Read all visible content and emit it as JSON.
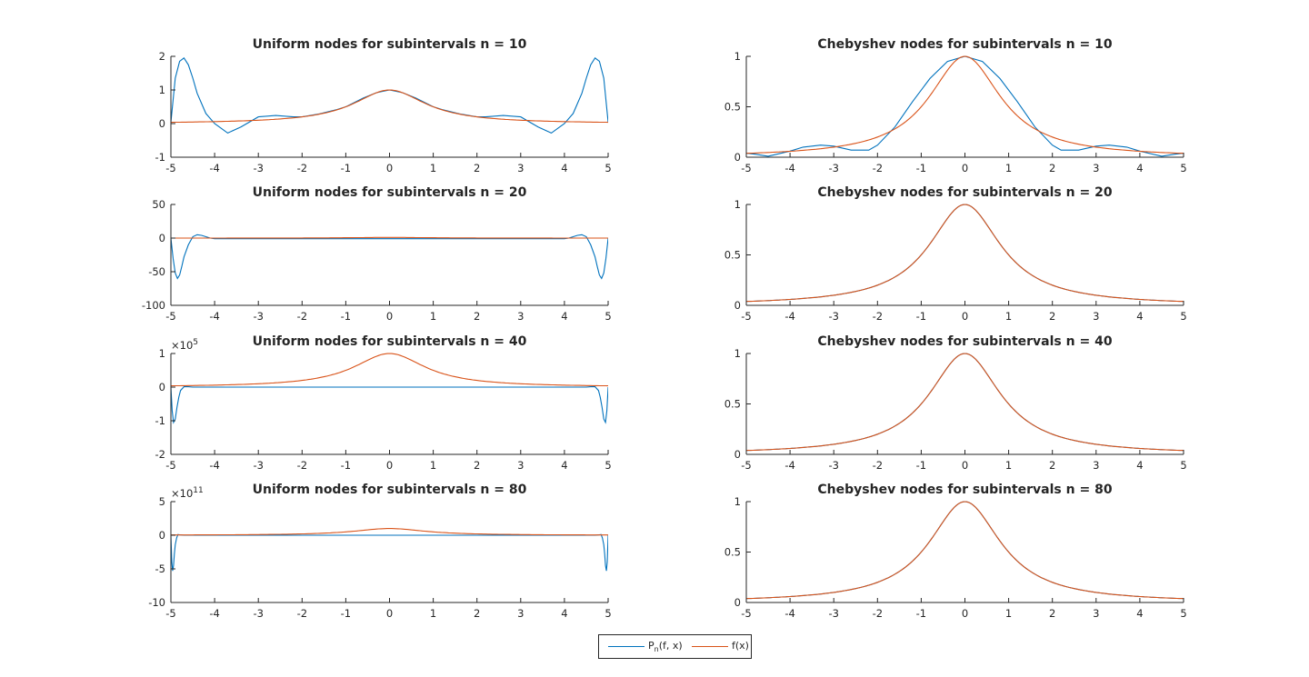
{
  "chart_data": [
    {
      "type": "line",
      "title": "Uniform nodes for subintervals n = 10",
      "xlim": [
        -5,
        5
      ],
      "ylim": [
        -1,
        2
      ],
      "xticks": [
        "-5",
        "-4",
        "-3",
        "-2",
        "-1",
        "0",
        "1",
        "2",
        "3",
        "4",
        "5"
      ],
      "yticks": [
        "-1",
        "0",
        "1",
        "2"
      ],
      "exponent": "",
      "grid": false,
      "series": [
        {
          "name": "p",
          "values_from": "interp",
          "x": [
            -5,
            -4.9,
            -4.8,
            -4.7,
            -4.6,
            -4.5,
            -4.4,
            -4.2,
            -4,
            -3.7,
            -3.4,
            -3,
            -2.6,
            -2.2,
            -2,
            -1.6,
            -1.2,
            -1,
            -0.6,
            -0.3,
            0,
            0.3,
            0.6,
            1,
            1.2,
            1.6,
            2,
            2.2,
            2.6,
            3,
            3.4,
            3.7,
            4,
            4.2,
            4.4,
            4.5,
            4.6,
            4.7,
            4.8,
            4.9,
            5
          ],
          "y": [
            0.04,
            1.35,
            1.85,
            1.95,
            1.75,
            1.35,
            0.9,
            0.3,
            0,
            -0.28,
            -0.1,
            0.2,
            0.24,
            0.2,
            0.2,
            0.29,
            0.42,
            0.5,
            0.76,
            0.92,
            1,
            0.92,
            0.76,
            0.5,
            0.42,
            0.29,
            0.2,
            0.2,
            0.24,
            0.2,
            -0.1,
            -0.28,
            0,
            0.3,
            0.9,
            1.35,
            1.75,
            1.95,
            1.85,
            1.35,
            0.04
          ]
        },
        {
          "name": "f",
          "values_from": "runge"
        }
      ]
    },
    {
      "type": "line",
      "title": "Chebyshev nodes for subintervals n = 10",
      "xlim": [
        -5,
        5
      ],
      "ylim": [
        0,
        1
      ],
      "xticks": [
        "-5",
        "-4",
        "-3",
        "-2",
        "-1",
        "0",
        "1",
        "2",
        "3",
        "4",
        "5"
      ],
      "yticks": [
        "0",
        "0.5",
        "1"
      ],
      "exponent": "",
      "grid": false,
      "series": [
        {
          "name": "p",
          "x": [
            -5,
            -4.8,
            -4.5,
            -4,
            -3.7,
            -3.3,
            -3,
            -2.6,
            -2.2,
            -2,
            -1.6,
            -1.2,
            -0.8,
            -0.4,
            0,
            0.4,
            0.8,
            1.2,
            1.6,
            2,
            2.2,
            2.6,
            3,
            3.3,
            3.7,
            4,
            4.5,
            4.8,
            5
          ],
          "y": [
            0.04,
            0.03,
            0.01,
            0.06,
            0.1,
            0.12,
            0.11,
            0.07,
            0.07,
            0.12,
            0.3,
            0.55,
            0.78,
            0.95,
            1,
            0.95,
            0.78,
            0.55,
            0.3,
            0.12,
            0.07,
            0.07,
            0.11,
            0.12,
            0.1,
            0.06,
            0.01,
            0.03,
            0.04
          ]
        },
        {
          "name": "f",
          "values_from": "runge"
        }
      ]
    },
    {
      "type": "line",
      "title": "Uniform nodes for subintervals n = 20",
      "xlim": [
        -5,
        5
      ],
      "ylim": [
        -100,
        50
      ],
      "xticks": [
        "-5",
        "-4",
        "-3",
        "-2",
        "-1",
        "0",
        "1",
        "2",
        "3",
        "4",
        "5"
      ],
      "yticks": [
        "-100",
        "-50",
        "0",
        "50"
      ],
      "exponent": "",
      "grid": false,
      "series": [
        {
          "name": "p",
          "x": [
            -5,
            -4.95,
            -4.9,
            -4.85,
            -4.8,
            -4.75,
            -4.7,
            -4.6,
            -4.5,
            -4.4,
            -4.3,
            -4.2,
            -4.1,
            -4,
            -3.8,
            3.8,
            4,
            4.1,
            4.2,
            4.3,
            4.4,
            4.5,
            4.6,
            4.7,
            4.75,
            4.8,
            4.85,
            4.9,
            4.95,
            5
          ],
          "y": [
            0,
            -30,
            -52,
            -60,
            -55,
            -42,
            -28,
            -10,
            2,
            5,
            4,
            2,
            0,
            -1,
            -1,
            -1,
            -1,
            0,
            2,
            4,
            5,
            2,
            -10,
            -28,
            -42,
            -55,
            -60,
            -52,
            -30,
            0
          ]
        },
        {
          "name": "f",
          "values_from": "runge"
        }
      ]
    },
    {
      "type": "line",
      "title": "Chebyshev nodes for subintervals n = 20",
      "xlim": [
        -5,
        5
      ],
      "ylim": [
        0,
        1
      ],
      "xticks": [
        "-5",
        "-4",
        "-3",
        "-2",
        "-1",
        "0",
        "1",
        "2",
        "3",
        "4",
        "5"
      ],
      "yticks": [
        "0",
        "0.5",
        "1"
      ],
      "exponent": "",
      "grid": false,
      "series": [
        {
          "name": "p",
          "values_from": "runge"
        },
        {
          "name": "f",
          "values_from": "runge"
        }
      ]
    },
    {
      "type": "line",
      "title": "Uniform nodes for subintervals n = 40",
      "xlim": [
        -5,
        5
      ],
      "ylim": [
        -2,
        1
      ],
      "xticks": [
        "-5",
        "-4",
        "-3",
        "-2",
        "-1",
        "0",
        "1",
        "2",
        "3",
        "4",
        "5"
      ],
      "yticks": [
        "-2",
        "-1",
        "0",
        "1"
      ],
      "exponent": "5",
      "grid": false,
      "series": [
        {
          "name": "p",
          "x": [
            -5,
            -4.97,
            -4.94,
            -4.9,
            -4.86,
            -4.82,
            -4.78,
            -4.7,
            -4.6,
            -4.5,
            4.5,
            4.6,
            4.7,
            4.78,
            4.82,
            4.86,
            4.9,
            4.94,
            4.97,
            5
          ],
          "y": [
            0,
            -0.7,
            -1.05,
            -0.95,
            -0.6,
            -0.3,
            -0.1,
            0.01,
            0.01,
            0,
            0,
            0.01,
            0.01,
            -0.1,
            -0.3,
            -0.6,
            -0.95,
            -1.05,
            -0.7,
            0
          ]
        },
        {
          "name": "f",
          "values_from": "runge"
        }
      ]
    },
    {
      "type": "line",
      "title": "Chebyshev nodes for subintervals n = 40",
      "xlim": [
        -5,
        5
      ],
      "ylim": [
        0,
        1
      ],
      "xticks": [
        "-5",
        "-4",
        "-3",
        "-2",
        "-1",
        "0",
        "1",
        "2",
        "3",
        "4",
        "5"
      ],
      "yticks": [
        "0",
        "0.5",
        "1"
      ],
      "exponent": "",
      "grid": false,
      "series": [
        {
          "name": "p",
          "values_from": "runge"
        },
        {
          "name": "f",
          "values_from": "runge"
        }
      ]
    },
    {
      "type": "line",
      "title": "Uniform nodes for subintervals n = 80",
      "xlim": [
        -5,
        5
      ],
      "ylim": [
        -10,
        5
      ],
      "xticks": [
        "-5",
        "-4",
        "-3",
        "-2",
        "-1",
        "0",
        "1",
        "2",
        "3",
        "4",
        "5"
      ],
      "yticks": [
        "-10",
        "-5",
        "0",
        "5"
      ],
      "exponent": "11",
      "grid": false,
      "series": [
        {
          "name": "p",
          "x": [
            -5,
            -4.98,
            -4.96,
            -4.94,
            -4.92,
            -4.9,
            -4.87,
            -4.84,
            -4.8,
            -4.7,
            4.7,
            4.8,
            4.84,
            4.87,
            4.9,
            4.92,
            4.94,
            4.96,
            4.98,
            5
          ],
          "y": [
            0,
            -4,
            -5.3,
            -4.5,
            -2.8,
            -1.4,
            -0.4,
            0.1,
            0.05,
            0,
            0,
            0.05,
            0.1,
            -0.4,
            -1.4,
            -2.8,
            -4.5,
            -5.3,
            -4,
            0
          ]
        },
        {
          "name": "f",
          "values_from": "runge"
        }
      ]
    },
    {
      "type": "line",
      "title": "Chebyshev nodes for subintervals n = 80",
      "xlim": [
        -5,
        5
      ],
      "ylim": [
        0,
        1
      ],
      "xticks": [
        "-5",
        "-4",
        "-3",
        "-2",
        "-1",
        "0",
        "1",
        "2",
        "3",
        "4",
        "5"
      ],
      "yticks": [
        "0",
        "0.5",
        "1"
      ],
      "exponent": "",
      "grid": false,
      "series": [
        {
          "name": "p",
          "values_from": "runge"
        },
        {
          "name": "f",
          "values_from": "runge"
        }
      ]
    }
  ],
  "legend": {
    "placement": "bottom-center",
    "entries": [
      {
        "key": "p",
        "main": "P",
        "sub": "n",
        "rest": "(f, x)",
        "color": "#0072BD"
      },
      {
        "key": "f",
        "label": "f(x)",
        "color": "#D95319"
      }
    ]
  },
  "colors": {
    "p": "#0072BD",
    "f": "#D95319",
    "axis": "#262626"
  }
}
